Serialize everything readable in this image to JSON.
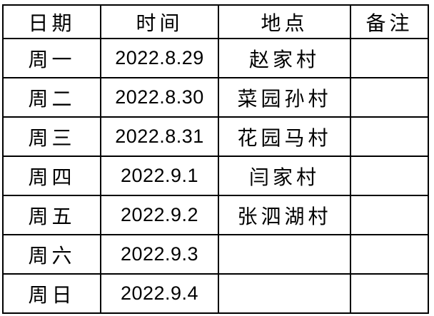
{
  "table": {
    "title": "weekly-schedule",
    "text_color": "#000000",
    "border_color": "#000000",
    "background_color": "#ffffff",
    "columns": [
      {
        "key": "day",
        "label": "日期"
      },
      {
        "key": "date",
        "label": "时间"
      },
      {
        "key": "location",
        "label": "地点"
      },
      {
        "key": "note",
        "label": "备注"
      }
    ],
    "rows": [
      {
        "day": "周一",
        "date": "2022.8.29",
        "location": "赵家村",
        "note": ""
      },
      {
        "day": "周二",
        "date": "2022.8.30",
        "location": "菜园孙村",
        "note": ""
      },
      {
        "day": "周三",
        "date": "2022.8.31",
        "location": "花园马村",
        "note": ""
      },
      {
        "day": "周四",
        "date": "2022.9.1",
        "location": "闫家村",
        "note": ""
      },
      {
        "day": "周五",
        "date": "2022.9.2",
        "location": "张泗湖村",
        "note": ""
      },
      {
        "day": "周六",
        "date": "2022.9.3",
        "location": "",
        "note": ""
      },
      {
        "day": "周日",
        "date": "2022.9.4",
        "location": "",
        "note": ""
      }
    ]
  }
}
